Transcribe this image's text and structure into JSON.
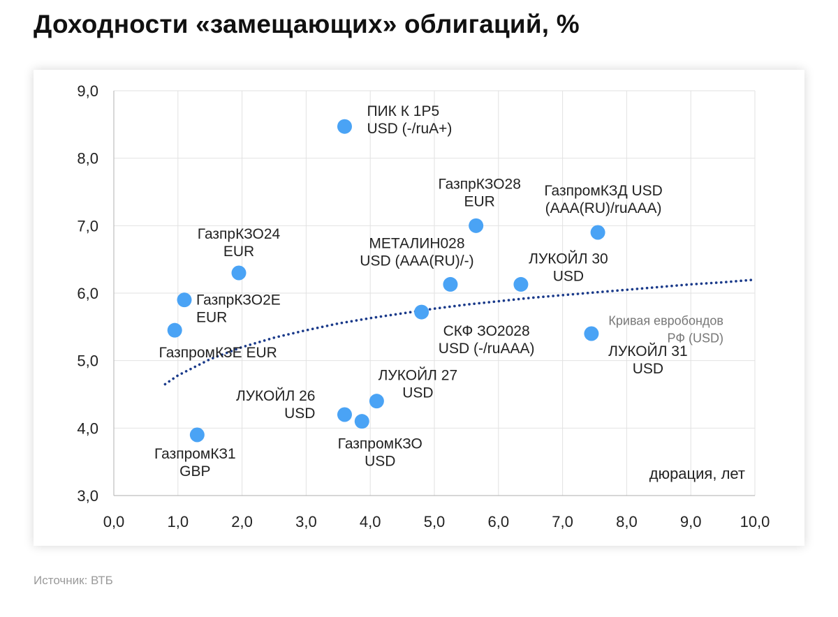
{
  "title": "Доходности «замещающих» облигаций, %",
  "source": "Источник: ВТБ",
  "colors": {
    "point": "#4aa3f5",
    "curve": "#1a3a8a",
    "grid": "#e2e2e2",
    "axis": "#bdbdbd",
    "text": "#222222",
    "curve_label": "#777777"
  },
  "chart_data": {
    "type": "scatter",
    "title": "Доходности «замещающих» облигаций, %",
    "xlabel": "дюрация, лет",
    "ylabel": "",
    "xlim": [
      0,
      10
    ],
    "ylim": [
      3,
      9
    ],
    "x_ticks": [
      "0,0",
      "1,0",
      "2,0",
      "3,0",
      "4,0",
      "5,0",
      "6,0",
      "7,0",
      "8,0",
      "9,0",
      "10,0"
    ],
    "y_ticks": [
      "3,0",
      "4,0",
      "5,0",
      "6,0",
      "7,0",
      "8,0",
      "9,0"
    ],
    "grid": true,
    "points": [
      {
        "x": 3.6,
        "y": 8.47,
        "label": [
          "ПИК К 1Р5",
          "USD (-/ruA+)"
        ]
      },
      {
        "x": 5.65,
        "y": 7.0,
        "label": [
          "ГазпрКЗО28",
          "EUR"
        ]
      },
      {
        "x": 7.55,
        "y": 6.9,
        "label": [
          "ГазпромКЗД USD",
          "(AAA(RU)/ruAAA)"
        ]
      },
      {
        "x": 1.95,
        "y": 6.3,
        "label": [
          "ГазпрКЗО24",
          "EUR"
        ]
      },
      {
        "x": 5.25,
        "y": 6.13,
        "label": [
          "МЕТАЛИН028",
          "USD (AAA(RU)/-)"
        ]
      },
      {
        "x": 6.35,
        "y": 6.13,
        "label": [
          "ЛУКОЙЛ 30",
          "USD"
        ]
      },
      {
        "x": 1.1,
        "y": 5.9,
        "label": [
          "ГазпрКЗО2Е",
          "EUR"
        ]
      },
      {
        "x": 4.8,
        "y": 5.72,
        "label": [
          "СКФ ЗО2028",
          "USD (-/ruAAA)"
        ]
      },
      {
        "x": 0.95,
        "y": 5.45,
        "label": [
          "ГазпромКЗЕ EUR"
        ]
      },
      {
        "x": 7.45,
        "y": 5.4,
        "label": [
          "ЛУКОЙЛ 31",
          "USD"
        ]
      },
      {
        "x": 4.1,
        "y": 4.4,
        "label": [
          "ЛУКОЙЛ 27",
          "USD"
        ]
      },
      {
        "x": 3.6,
        "y": 4.2,
        "label": [
          "ЛУКОЙЛ 26",
          "USD"
        ]
      },
      {
        "x": 3.87,
        "y": 4.1,
        "label": [
          "ГазпромКЗО",
          "USD"
        ]
      },
      {
        "x": 1.3,
        "y": 3.9,
        "label": [
          "ГазпромКЗ1",
          "GBP"
        ]
      }
    ],
    "curve": {
      "name": "Кривая евробондов РФ (USD)",
      "label": [
        "Кривая евробондов",
        "РФ (USD)"
      ],
      "style": "dotted",
      "x": [
        0.8,
        1.0,
        1.5,
        2.0,
        2.5,
        3.0,
        3.5,
        4.0,
        4.5,
        5.0,
        5.5,
        6.0,
        6.5,
        7.0,
        7.5,
        8.0,
        8.5,
        9.0,
        9.5,
        10.0
      ],
      "y": [
        4.65,
        4.78,
        5.02,
        5.2,
        5.34,
        5.45,
        5.55,
        5.63,
        5.7,
        5.77,
        5.83,
        5.88,
        5.93,
        5.97,
        6.01,
        6.05,
        6.09,
        6.13,
        6.16,
        6.2
      ]
    }
  }
}
